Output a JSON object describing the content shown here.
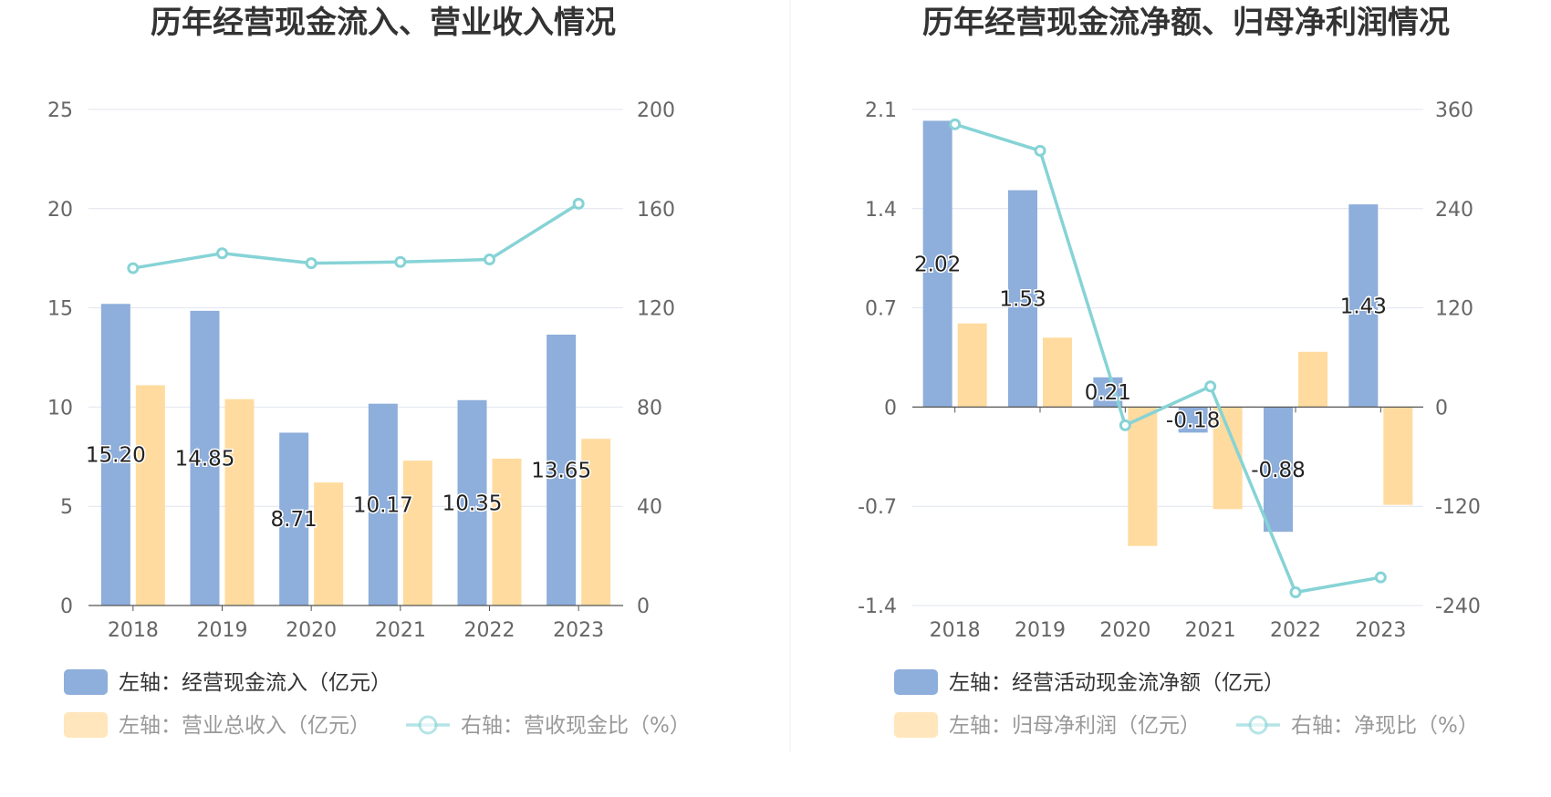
{
  "colors": {
    "bar_primary": "#8eaedb",
    "bar_secondary": "#ffdb9f",
    "line": "#86d3d6",
    "axis_text": "#666666",
    "grid": "#e0e4ef",
    "title": "#333333"
  },
  "chart_data": [
    {
      "type": "bar",
      "title": "历年经营现金流入、营业收入情况",
      "categories": [
        "2018",
        "2019",
        "2020",
        "2021",
        "2022",
        "2023"
      ],
      "left_axis": {
        "ylim": [
          0,
          25
        ],
        "ticks": [
          "0",
          "5",
          "10",
          "15",
          "20",
          "25"
        ]
      },
      "right_axis": {
        "ylim": [
          0,
          200
        ],
        "ticks": [
          "0",
          "40",
          "80",
          "120",
          "160",
          "200"
        ]
      },
      "grid": true,
      "legend_placement": "bottom",
      "series": [
        {
          "name": "左轴：经营现金流入（亿元）",
          "kind": "bar",
          "axis": "left",
          "values": [
            15.2,
            14.85,
            8.71,
            10.17,
            10.35,
            13.65
          ],
          "labels": [
            "15.20",
            "14.85",
            "8.71",
            "10.17",
            "10.35",
            "13.65"
          ]
        },
        {
          "name": "左轴：营业总收入（亿元）",
          "kind": "bar",
          "axis": "left",
          "values": [
            11.1,
            10.4,
            6.2,
            7.3,
            7.4,
            8.4
          ]
        },
        {
          "name": "右轴：营收现金比（%）",
          "kind": "line",
          "axis": "right",
          "values": [
            136,
            142,
            138,
            138.5,
            139.5,
            162
          ]
        }
      ]
    },
    {
      "type": "bar",
      "title": "历年经营现金流净额、归母净利润情况",
      "categories": [
        "2018",
        "2019",
        "2020",
        "2021",
        "2022",
        "2023"
      ],
      "left_axis": {
        "ylim": [
          -1.4,
          2.1
        ],
        "ticks": [
          "-1.4",
          "-0.7",
          "0",
          "0.7",
          "1.4",
          "2.1"
        ]
      },
      "right_axis": {
        "ylim": [
          -240,
          360
        ],
        "ticks": [
          "-240",
          "-120",
          "0",
          "120",
          "240",
          "360"
        ]
      },
      "grid": true,
      "legend_placement": "bottom",
      "series": [
        {
          "name": "左轴：经营活动现金流净额（亿元）",
          "kind": "bar",
          "axis": "left",
          "values": [
            2.02,
            1.53,
            0.21,
            -0.18,
            -0.88,
            1.43
          ],
          "labels": [
            "2.02",
            "1.53",
            "0.21",
            "-0.18",
            "-0.88",
            "1.43"
          ]
        },
        {
          "name": "左轴：归母净利润（亿元）",
          "kind": "bar",
          "axis": "left",
          "values": [
            0.59,
            0.49,
            -0.98,
            -0.72,
            0.39,
            -0.69
          ]
        },
        {
          "name": "右轴：净现比（%）",
          "kind": "line",
          "axis": "right",
          "values": [
            342,
            310,
            -22,
            25,
            -224,
            -206
          ]
        }
      ]
    }
  ]
}
